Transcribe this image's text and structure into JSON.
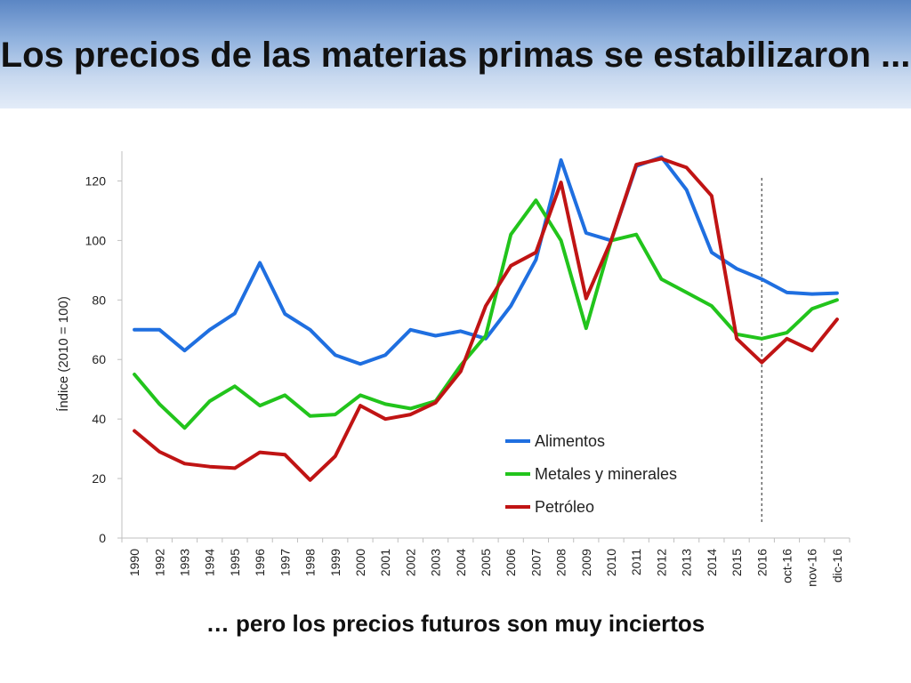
{
  "slide": {
    "title": "Los precios de las materias primas se estabilizaron ...",
    "subtitle": "… pero los precios futuros son muy inciertos"
  },
  "chart_data": {
    "type": "line",
    "ylabel": "Índice (2010 = 100)",
    "xlabel": "",
    "ylim": [
      0,
      130
    ],
    "yticks": [
      0,
      20,
      40,
      60,
      80,
      100,
      120
    ],
    "categories": [
      "1990",
      "1992",
      "1993",
      "1994",
      "1995",
      "1996",
      "1997",
      "1998",
      "1999",
      "2000",
      "2001",
      "2002",
      "2003",
      "2004",
      "2005",
      "2006",
      "2007",
      "2008",
      "2009",
      "2010",
      "2011",
      "2012",
      "2013",
      "2014",
      "2015",
      "2016",
      "oct-16",
      "nov-16",
      "dic-16"
    ],
    "series": [
      {
        "name": "Alimentos",
        "color": "#1f6fe0",
        "values": [
          70,
          70,
          63,
          70,
          75.5,
          92.5,
          75.3,
          70,
          61.5,
          58.5,
          61.5,
          70,
          68,
          69.5,
          67,
          78,
          93.5,
          127,
          102.5,
          100,
          125,
          128,
          117,
          96,
          90.5,
          87,
          82.5,
          82,
          82.3
        ]
      },
      {
        "name": "Metales y minerales",
        "color": "#22c41c",
        "values": [
          55,
          45,
          37,
          46,
          51,
          44.5,
          48,
          41,
          41.5,
          48,
          45,
          43.5,
          46,
          58,
          68,
          102,
          113.5,
          100,
          70.5,
          100,
          102,
          87,
          82.5,
          78,
          68.5,
          67,
          69,
          77,
          80
        ]
      },
      {
        "name": "Petróleo",
        "color": "#c01414",
        "values": [
          36,
          29,
          25,
          24,
          23.5,
          28.8,
          28,
          19.5,
          27.5,
          44.5,
          40,
          41.5,
          45.5,
          56,
          78,
          91.5,
          96,
          119.5,
          80.5,
          100,
          125.5,
          127.5,
          124.5,
          115,
          67,
          59,
          67,
          63,
          73.5
        ]
      }
    ],
    "marker_line": {
      "at_category": "2016",
      "style": "dotted"
    },
    "legend": {
      "placement": "center-bottom"
    },
    "grid": false
  }
}
